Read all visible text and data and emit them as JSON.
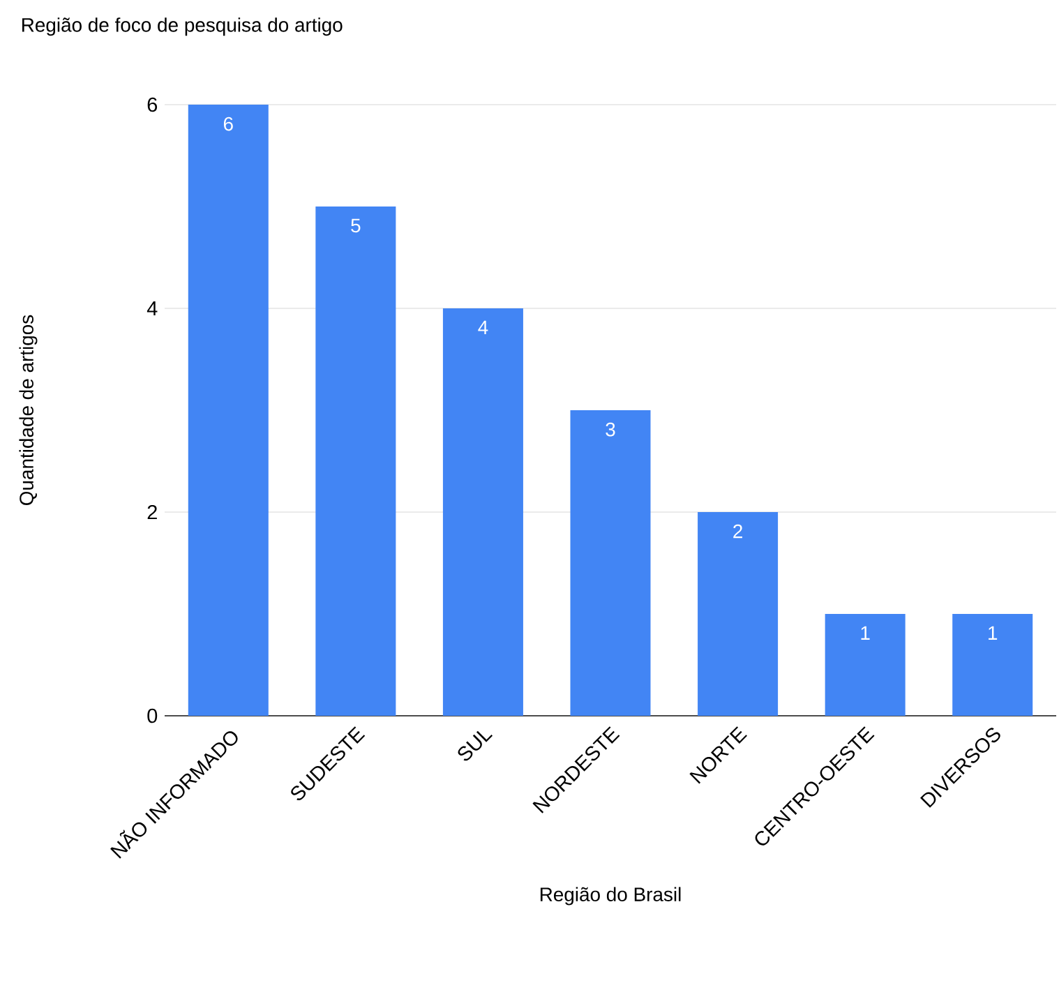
{
  "chart_data": {
    "type": "bar",
    "title": "Região de foco de pesquisa do artigo",
    "xlabel": "Região do Brasil",
    "ylabel": "Quantidade de artigos",
    "categories": [
      "NÃO INFORMADO",
      "SUDESTE",
      "SUL",
      "NORDESTE",
      "NORTE",
      "CENTRO-OESTE",
      "DIVERSOS"
    ],
    "values": [
      6,
      5,
      4,
      3,
      2,
      1,
      1
    ],
    "color": "#4285f4",
    "ylim": [
      0,
      6
    ],
    "yticks": [
      0,
      2,
      4,
      6
    ],
    "grid": "y",
    "data_labels": true
  }
}
